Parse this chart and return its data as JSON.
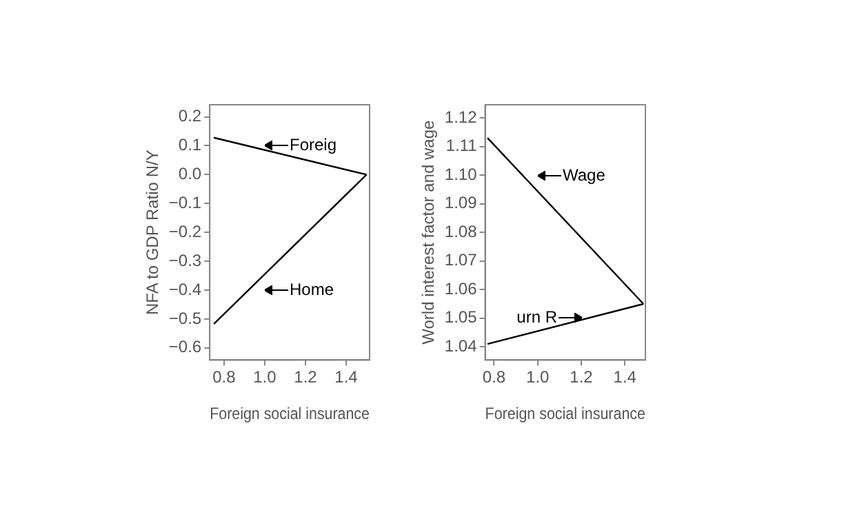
{
  "chart_data": [
    {
      "type": "line",
      "xlabel": "Foreign social insurance",
      "ylabel": "NFA to GDP Ratio N/Y",
      "series": [
        {
          "color": "#000000",
          "x": [
            0.75,
            1.5
          ],
          "values": [
            0.128,
            0.0
          ]
        },
        {
          "color": "#000000",
          "x": [
            0.75,
            1.5
          ],
          "values": [
            -0.517,
            0.0
          ]
        }
      ],
      "xlim": [
        0.73,
        1.515
      ],
      "xticks": [
        0.8,
        {
          "value": 1,
          "label": "1.0"
        },
        1.2,
        1.4
      ],
      "ylim": [
        -0.642,
        0.242
      ],
      "yticks": [
        {
          "value": -0.6,
          "label": "−0.6"
        },
        {
          "value": -0.5,
          "label": "−0.5"
        },
        {
          "value": -0.4,
          "label": "−0.4"
        },
        {
          "value": -0.3,
          "label": "−0.3"
        },
        {
          "value": -0.2,
          "label": "−0.2"
        },
        {
          "value": -0.1,
          "label": "−0.1"
        },
        {
          "value": 0,
          "label": "0.0"
        },
        0.1,
        0.2
      ],
      "annotations": [
        "Foreig",
        "Home"
      ],
      "grid": false,
      "legend": false,
      "marker": "none",
      "line_style": "solid"
    },
    {
      "type": "line",
      "xlabel": "Foreign social insurance",
      "ylabel": "World interest factor and wage",
      "series": [
        {
          "color": "#000000",
          "x": [
            0.77,
            1.485
          ],
          "values": [
            1.113,
            1.055
          ]
        },
        {
          "color": "#000000",
          "x": [
            0.77,
            1.485
          ],
          "values": [
            1.041,
            1.055
          ]
        }
      ],
      "xlim": [
        0.759,
        1.494
      ],
      "xticks": [
        0.8,
        {
          "value": 1,
          "label": "1.0"
        },
        1.2,
        1.4
      ],
      "ylim": [
        1.0354,
        1.1246
      ],
      "yticks": [
        1.04,
        1.05,
        1.06,
        1.07,
        1.08,
        1.09,
        {
          "value": 1.1,
          "label": "1.10"
        },
        1.11,
        1.12
      ],
      "annotations": [
        "Wage",
        "urn R"
      ],
      "grid": false,
      "legend": false,
      "marker": "none",
      "line_style": "solid"
    }
  ]
}
